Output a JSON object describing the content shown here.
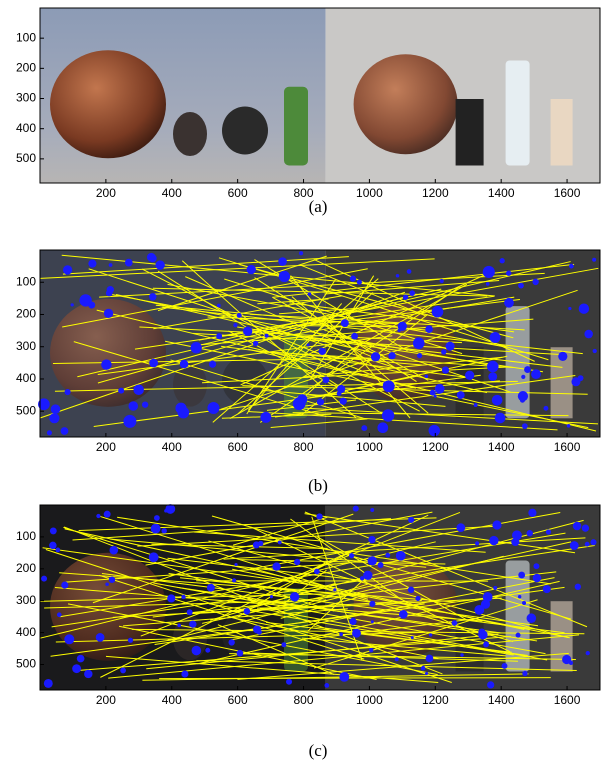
{
  "panels": [
    {
      "caption": "(a)",
      "xlim": [
        0,
        1700
      ],
      "ylim": [
        0,
        580
      ],
      "xticks": [
        200,
        400,
        600,
        800,
        1000,
        1200,
        1400,
        1600
      ],
      "yticks": [
        100,
        200,
        300,
        400,
        500
      ]
    },
    {
      "caption": "(b)",
      "xlim": [
        0,
        1700
      ],
      "ylim": [
        0,
        580
      ],
      "xticks": [
        200,
        400,
        600,
        800,
        1000,
        1200,
        1400,
        1600
      ],
      "yticks": [
        100,
        200,
        300,
        400,
        500
      ]
    },
    {
      "caption": "(c)",
      "xlim": [
        0,
        1700
      ],
      "ylim": [
        0,
        580
      ],
      "xticks": [
        200,
        400,
        600,
        800,
        1000,
        1200,
        1400,
        1600
      ],
      "yticks": [
        100,
        200,
        300,
        400,
        500
      ]
    }
  ]
}
